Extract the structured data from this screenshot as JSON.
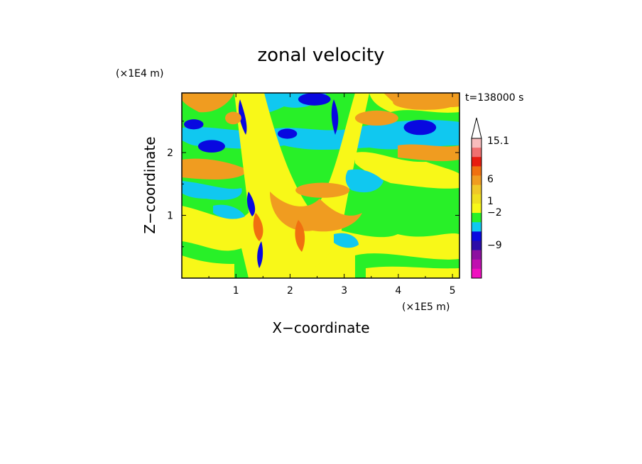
{
  "chart_data": {
    "type": "heatmap",
    "title": "zonal velocity",
    "xlabel": "X−coordinate",
    "ylabel": "Z−coordinate",
    "x_scale_label": "(×1E5 m)",
    "y_scale_label": "(×1E4 m)",
    "time_label": "t=138000 s",
    "xlim": [
      0,
      5.13
    ],
    "ylim": [
      0,
      2.95
    ],
    "x_ticks": [
      "1",
      "2",
      "3",
      "4",
      "5"
    ],
    "y_ticks": [
      "1",
      "2"
    ],
    "x_tick_values": [
      1,
      2,
      3,
      4,
      5
    ],
    "y_tick_values": [
      1,
      2
    ],
    "colorbar": {
      "labels": [
        "15.1",
        "6",
        "1",
        "−2",
        "−9"
      ],
      "colors": [
        "#f8bcbc",
        "#f07070",
        "#e81c10",
        "#f07010",
        "#f09c20",
        "#f0c828",
        "#f0e020",
        "#f8f818",
        "#28f028",
        "#10c8f0",
        "#0808e0",
        "#2c0ca8",
        "#8c10a0",
        "#c010b0",
        "#f010c0"
      ]
    },
    "features": [
      {
        "kind": "blob",
        "x": 0.22,
        "y": 2.45,
        "rx": 0.18,
        "ry": 0.08,
        "level": "dark-blue"
      },
      {
        "kind": "blob",
        "x": 0.55,
        "y": 2.1,
        "rx": 0.25,
        "ry": 0.1,
        "level": "dark-blue"
      },
      {
        "kind": "blob",
        "x": 4.4,
        "y": 2.4,
        "rx": 0.3,
        "ry": 0.12,
        "level": "dark-blue"
      },
      {
        "kind": "blob",
        "x": 1.95,
        "y": 2.3,
        "rx": 0.18,
        "ry": 0.08,
        "level": "dark-blue"
      },
      {
        "kind": "blob",
        "x": 2.45,
        "y": 2.85,
        "rx": 0.3,
        "ry": 0.1,
        "level": "dark-blue"
      },
      {
        "kind": "blob",
        "x": 0.95,
        "y": 2.55,
        "rx": 0.15,
        "ry": 0.1,
        "level": "orange"
      },
      {
        "kind": "blob",
        "x": 0.45,
        "y": 1.75,
        "rx": 0.55,
        "ry": 0.12,
        "level": "orange"
      },
      {
        "kind": "blob",
        "x": 3.6,
        "y": 2.55,
        "rx": 0.4,
        "ry": 0.12,
        "level": "orange"
      },
      {
        "kind": "blob",
        "x": 4.5,
        "y": 2.8,
        "rx": 0.6,
        "ry": 0.12,
        "level": "orange"
      },
      {
        "kind": "blob",
        "x": 2.6,
        "y": 1.4,
        "rx": 0.5,
        "ry": 0.12,
        "level": "orange"
      }
    ]
  }
}
